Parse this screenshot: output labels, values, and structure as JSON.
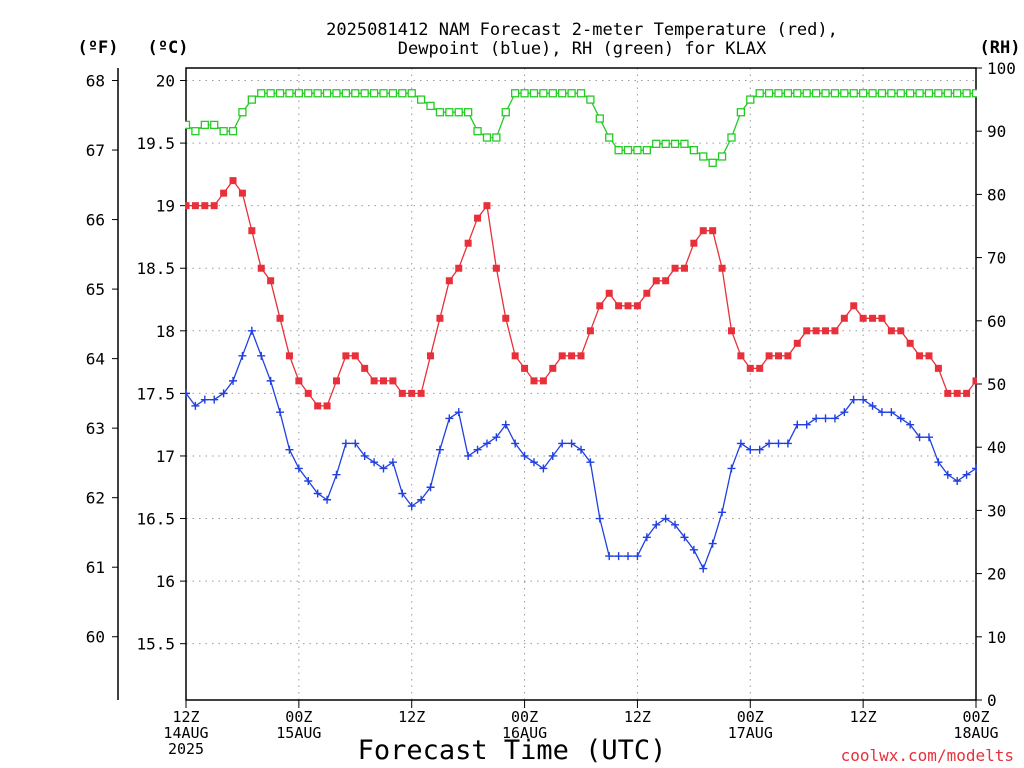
{
  "chart_data": {
    "type": "line",
    "title_lines": [
      "2025081412 NAM Forecast 2-meter Temperature (red),",
      "Dewpoint (blue), RH (green) for KLAX"
    ],
    "xlabel": "Forecast Time (UTC)",
    "credit": "coolwx.com/modelts",
    "units": {
      "fahrenheit": "(ºF)",
      "celsius": "(ºC)",
      "rh": "(RH)"
    },
    "x_hours_range": [
      0,
      84
    ],
    "x_ticks": [
      {
        "hour": 0,
        "lines": [
          "12Z",
          "14AUG",
          "2025"
        ]
      },
      {
        "hour": 12,
        "lines": [
          "00Z",
          "15AUG"
        ]
      },
      {
        "hour": 24,
        "lines": [
          "12Z"
        ]
      },
      {
        "hour": 36,
        "lines": [
          "00Z",
          "16AUG"
        ]
      },
      {
        "hour": 48,
        "lines": [
          "12Z"
        ]
      },
      {
        "hour": 60,
        "lines": [
          "00Z",
          "17AUG"
        ]
      },
      {
        "hour": 72,
        "lines": [
          "12Z"
        ]
      },
      {
        "hour": 84,
        "lines": [
          "00Z",
          "18AUG"
        ]
      }
    ],
    "celsius_axis": {
      "range": [
        15.05,
        20.1
      ],
      "ticks": [
        "15.5",
        "16",
        "16.5",
        "17",
        "17.5",
        "18",
        "18.5",
        "19",
        "19.5",
        "20"
      ]
    },
    "fahrenheit_axis": {
      "ticks": [
        "60",
        "61",
        "62",
        "63",
        "64",
        "65",
        "66",
        "67",
        "68"
      ]
    },
    "rh_axis": {
      "range": [
        0,
        100
      ],
      "ticks": [
        "0",
        "10",
        "20",
        "30",
        "40",
        "50",
        "60",
        "70",
        "80",
        "90",
        "100"
      ]
    },
    "grid": true,
    "series": [
      {
        "name": "Temperature",
        "axis": "celsius",
        "color": "#e8303a",
        "marker": "filled-square",
        "values": [
          19.0,
          19.0,
          19.0,
          19.0,
          19.1,
          19.2,
          19.1,
          18.8,
          18.5,
          18.4,
          18.1,
          17.8,
          17.6,
          17.5,
          17.4,
          17.4,
          17.6,
          17.8,
          17.8,
          17.7,
          17.6,
          17.6,
          17.6,
          17.5,
          17.5,
          17.5,
          17.8,
          18.1,
          18.4,
          18.5,
          18.7,
          18.9,
          19.0,
          18.5,
          18.1,
          17.8,
          17.7,
          17.6,
          17.6,
          17.7,
          17.8,
          17.8,
          17.8,
          18.0,
          18.2,
          18.3,
          18.2,
          18.2,
          18.2,
          18.3,
          18.4,
          18.4,
          18.5,
          18.5,
          18.7,
          18.8,
          18.8,
          18.5,
          18.0,
          17.8,
          17.7,
          17.7,
          17.8,
          17.8,
          17.8,
          17.9,
          18.0,
          18.0,
          18.0,
          18.0,
          18.1,
          18.2,
          18.1,
          18.1,
          18.1,
          18.0,
          18.0,
          17.9,
          17.8,
          17.8,
          17.7,
          17.5,
          17.5,
          17.5,
          17.6
        ]
      },
      {
        "name": "Dewpoint",
        "axis": "celsius",
        "color": "#2040e0",
        "marker": "plus",
        "values": [
          17.5,
          17.4,
          17.45,
          17.45,
          17.5,
          17.6,
          17.8,
          18.0,
          17.8,
          17.6,
          17.35,
          17.05,
          16.9,
          16.8,
          16.7,
          16.65,
          16.85,
          17.1,
          17.1,
          17.0,
          16.95,
          16.9,
          16.95,
          16.7,
          16.6,
          16.65,
          16.75,
          17.05,
          17.3,
          17.35,
          17.0,
          17.05,
          17.1,
          17.15,
          17.25,
          17.1,
          17.0,
          16.95,
          16.9,
          17.0,
          17.1,
          17.1,
          17.05,
          16.95,
          16.5,
          16.2,
          16.2,
          16.2,
          16.2,
          16.35,
          16.45,
          16.5,
          16.45,
          16.35,
          16.25,
          16.1,
          16.3,
          16.55,
          16.9,
          17.1,
          17.05,
          17.05,
          17.1,
          17.1,
          17.1,
          17.25,
          17.25,
          17.3,
          17.3,
          17.3,
          17.35,
          17.45,
          17.45,
          17.4,
          17.35,
          17.35,
          17.3,
          17.25,
          17.15,
          17.15,
          16.95,
          16.85,
          16.8,
          16.85,
          16.9
        ]
      },
      {
        "name": "RH",
        "axis": "rh",
        "color": "#22cc22",
        "marker": "open-square",
        "values": [
          91,
          90,
          91,
          91,
          90,
          90,
          93,
          95,
          96,
          96,
          96,
          96,
          96,
          96,
          96,
          96,
          96,
          96,
          96,
          96,
          96,
          96,
          96,
          96,
          96,
          95,
          94,
          93,
          93,
          93,
          93,
          90,
          89,
          89,
          93,
          96,
          96,
          96,
          96,
          96,
          96,
          96,
          96,
          95,
          92,
          89,
          87,
          87,
          87,
          87,
          88,
          88,
          88,
          88,
          87,
          86,
          85,
          86,
          89,
          93,
          95,
          96,
          96,
          96,
          96,
          96,
          96,
          96,
          96,
          96,
          96,
          96,
          96,
          96,
          96,
          96,
          96,
          96,
          96,
          96,
          96,
          96,
          96,
          96,
          96
        ]
      }
    ]
  }
}
